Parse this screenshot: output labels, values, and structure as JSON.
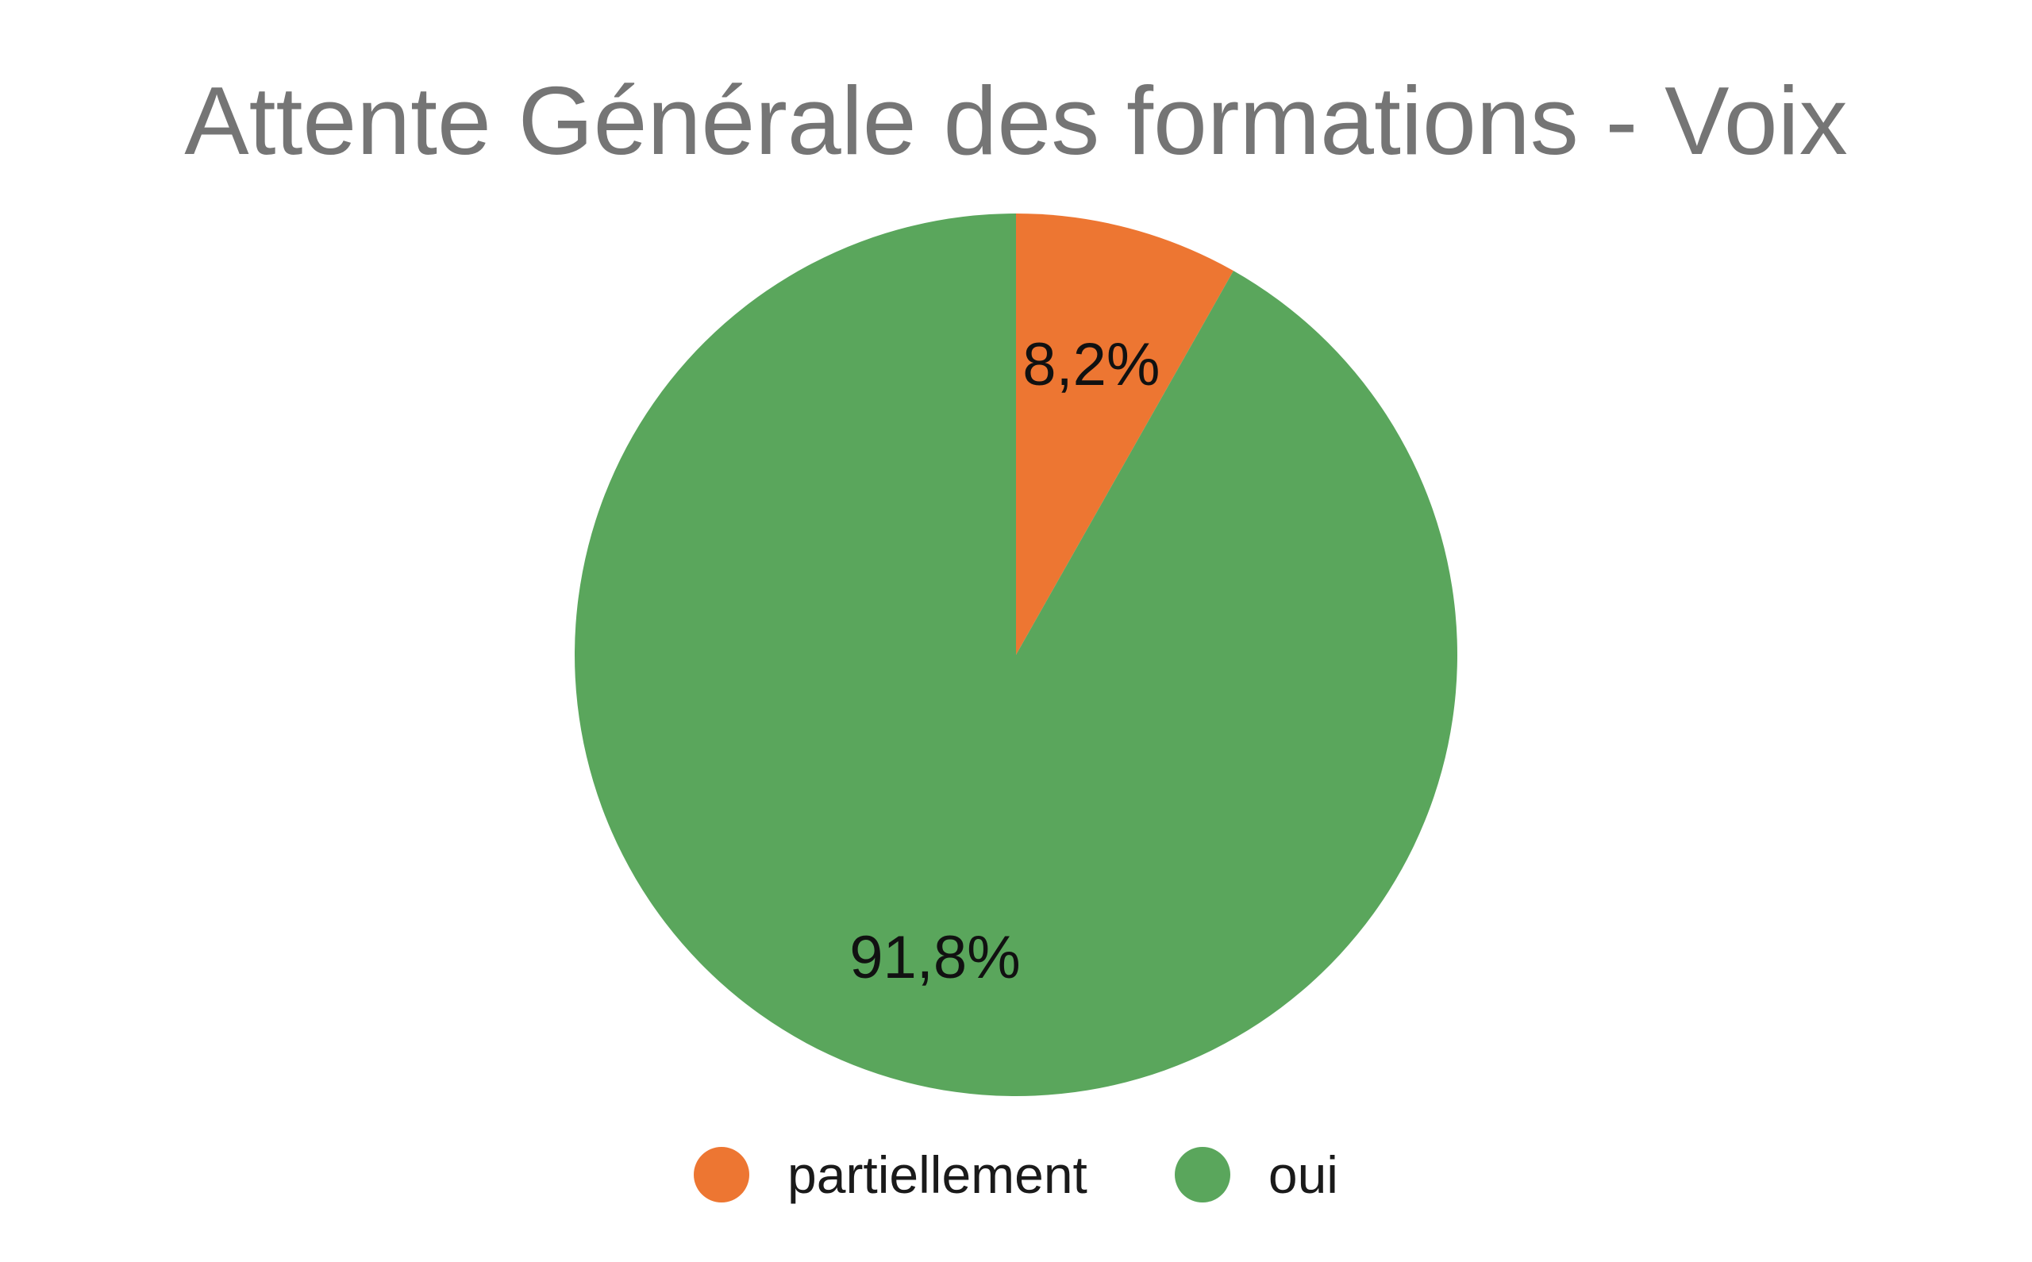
{
  "chart_data": {
    "type": "pie",
    "title": "Attente Générale des formations - Voix",
    "slices": [
      {
        "name": "partiellement",
        "value": 8.2,
        "label": "8,2%",
        "color": "#ED7632"
      },
      {
        "name": "oui",
        "value": 91.8,
        "label": "91,8%",
        "color": "#5AA65C"
      }
    ],
    "start_angle_deg": 0,
    "direction": "clockwise",
    "legend_position": "bottom"
  }
}
